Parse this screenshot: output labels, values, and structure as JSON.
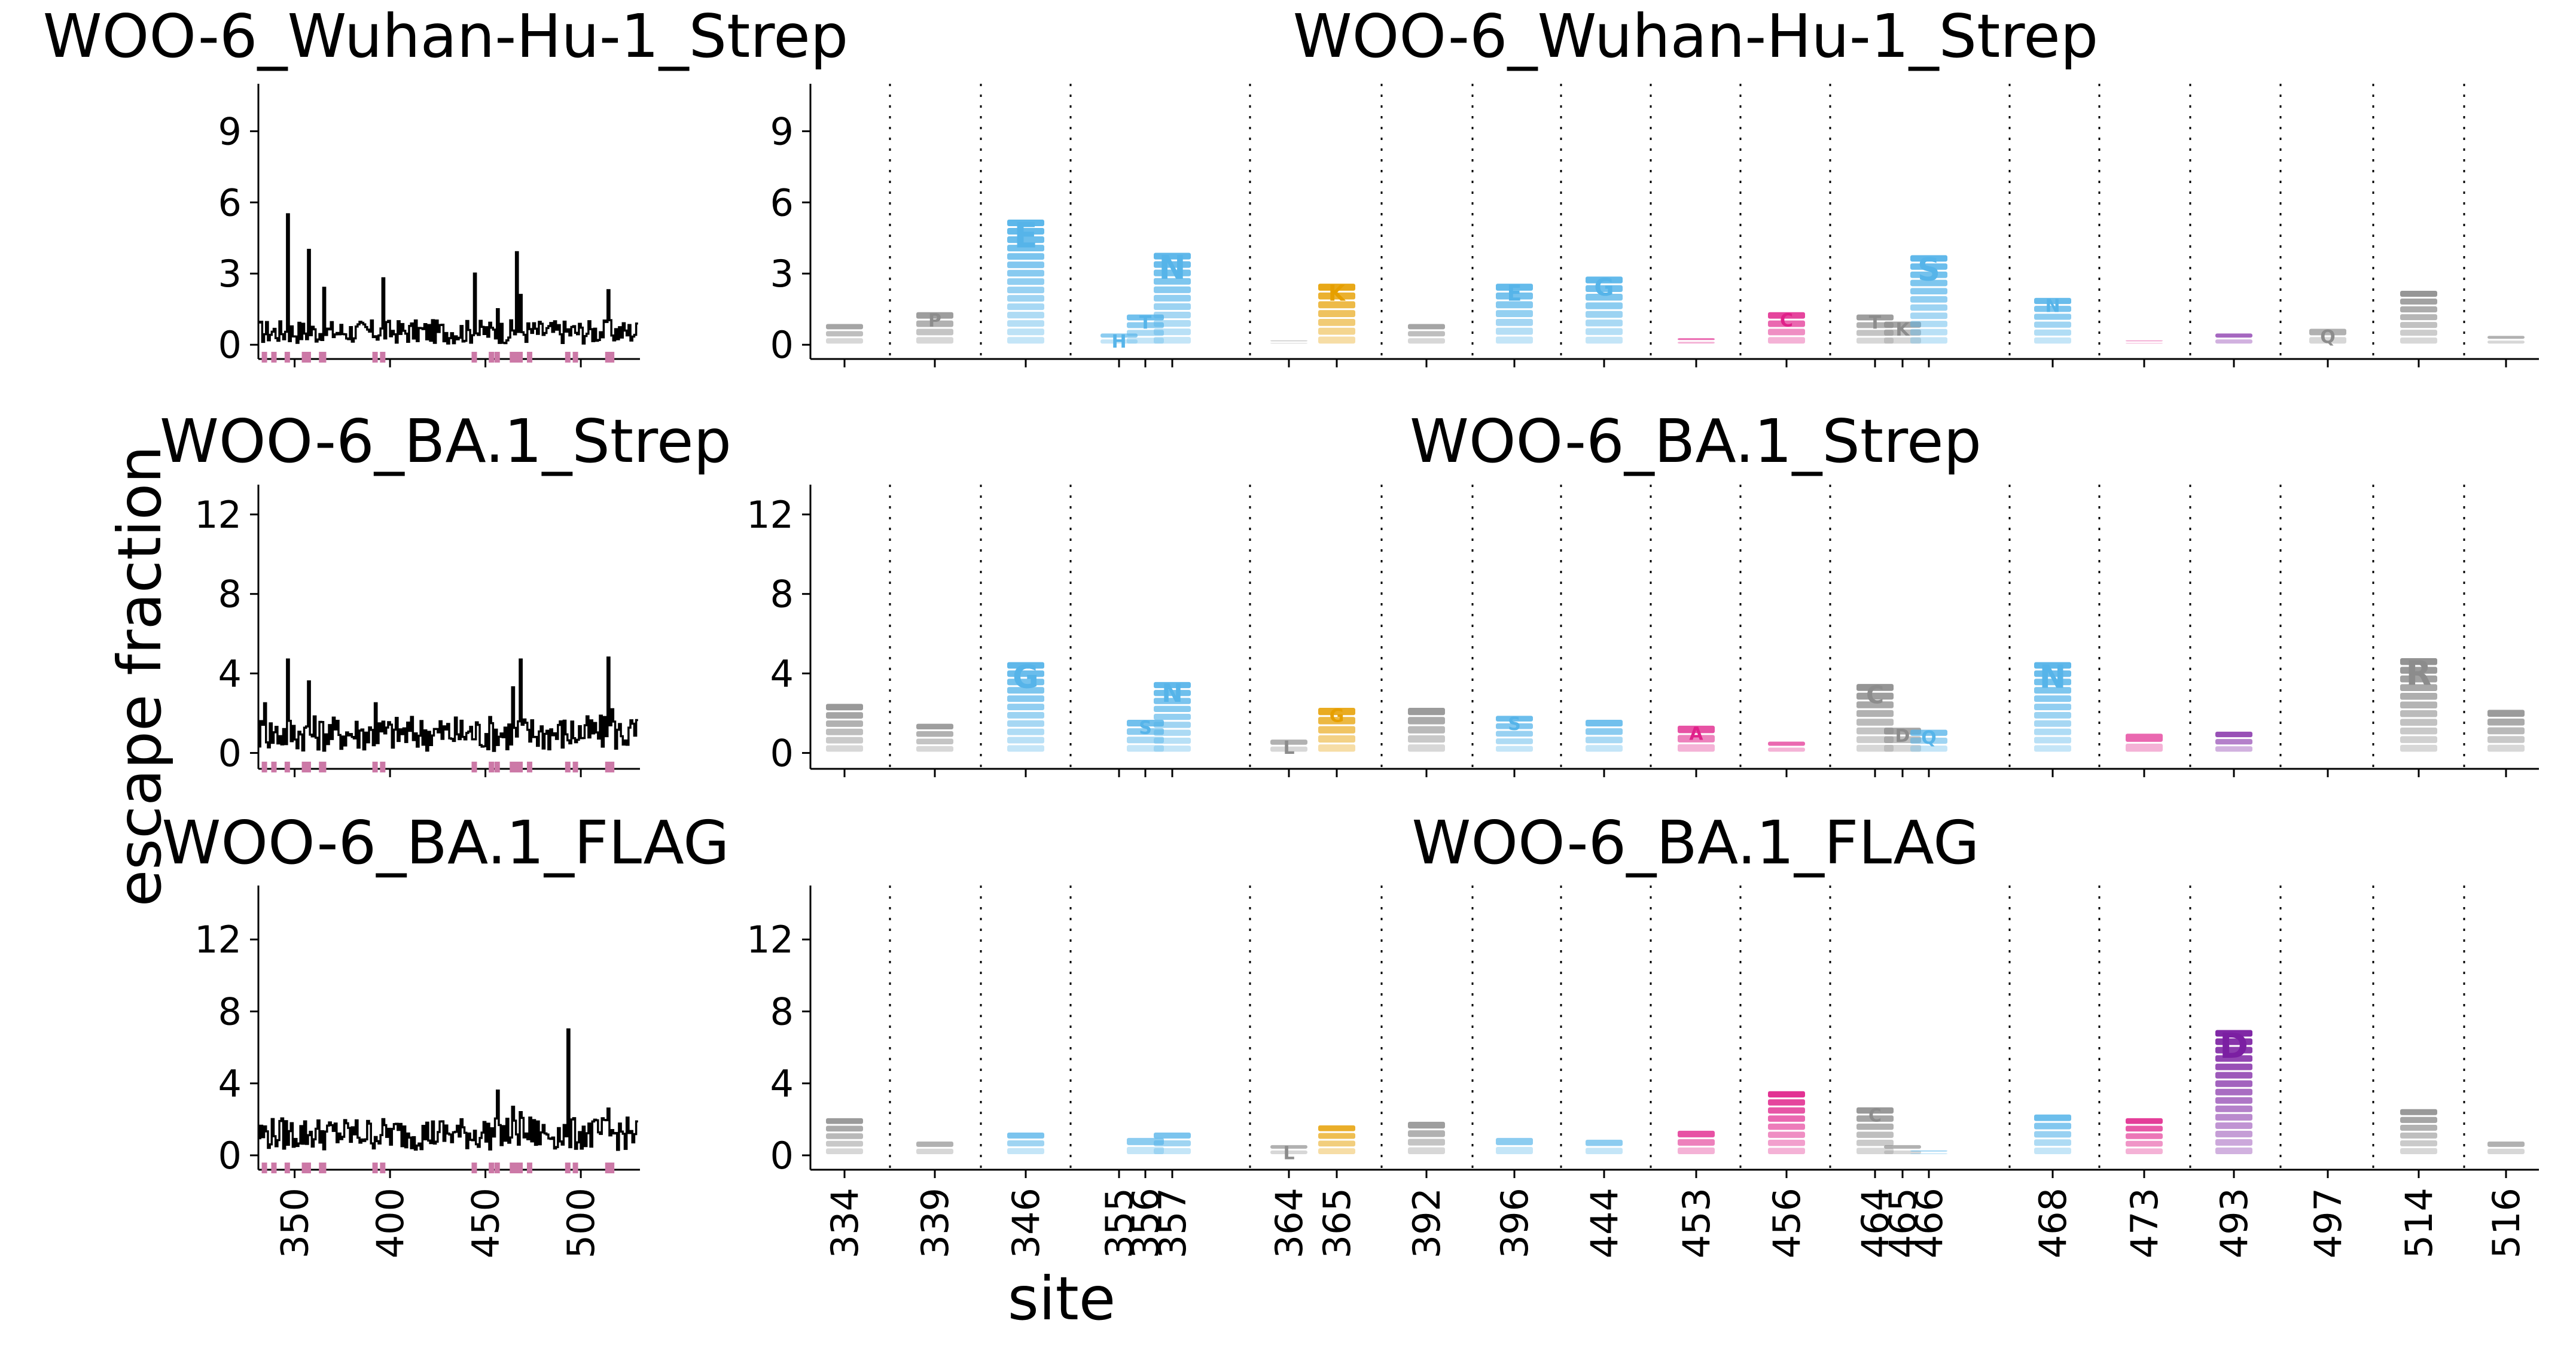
{
  "figure": {
    "ylabel": "escape fraction",
    "xlabel": "site"
  },
  "colors": {
    "line": "#000000",
    "site_marker": "#cc79a7",
    "gray": "#8c8c8c",
    "cyan": "#56b4e9",
    "orange": "#e69f00",
    "magenta": "#e0218a",
    "purple": "#7b1fa2"
  },
  "chart_data": [
    {
      "type": "line",
      "title": "WOO-6_Wuhan-Hu-1_Strep",
      "xlim": [
        331,
        531
      ],
      "ylim": [
        -0.6,
        11
      ],
      "xticks": [
        350,
        400,
        450,
        500
      ],
      "yticks": [
        0,
        3,
        6,
        9
      ],
      "marked_sites": [
        334,
        339,
        346,
        355,
        356,
        357,
        364,
        365,
        392,
        396,
        444,
        453,
        456,
        464,
        465,
        466,
        468,
        473,
        493,
        497,
        514,
        516
      ],
      "baseline": 0.55,
      "noise": 0.25,
      "peaks": [
        [
          346,
          5.5
        ],
        [
          357,
          4.0
        ],
        [
          365,
          2.4
        ],
        [
          396,
          2.8
        ],
        [
          444,
          3.0
        ],
        [
          456,
          1.5
        ],
        [
          466,
          3.9
        ],
        [
          468,
          2.1
        ],
        [
          514,
          2.3
        ],
        [
          364,
          0.2
        ]
      ]
    },
    {
      "type": "line",
      "title": "WOO-6_BA.1_Strep",
      "xlim": [
        331,
        531
      ],
      "ylim": [
        -0.8,
        13.5
      ],
      "xticks": [
        350,
        400,
        450,
        500
      ],
      "yticks": [
        0,
        4,
        8,
        12
      ],
      "marked_sites": [
        334,
        339,
        346,
        355,
        356,
        357,
        364,
        365,
        392,
        396,
        444,
        453,
        456,
        464,
        465,
        466,
        468,
        473,
        493,
        497,
        514,
        516
      ],
      "baseline": 1.0,
      "noise": 0.45,
      "peaks": [
        [
          346,
          4.7
        ],
        [
          357,
          3.6
        ],
        [
          334,
          2.5
        ],
        [
          392,
          2.5
        ],
        [
          464,
          3.3
        ],
        [
          468,
          4.7
        ],
        [
          514,
          4.8
        ],
        [
          516,
          2.2
        ],
        [
          453,
          1.5
        ]
      ]
    },
    {
      "type": "line",
      "title": "WOO-6_BA.1_FLAG",
      "xlim": [
        331,
        531
      ],
      "ylim": [
        -0.8,
        15
      ],
      "xticks": [
        350,
        400,
        450,
        500
      ],
      "yticks": [
        0,
        4,
        8,
        12
      ],
      "marked_sites": [
        334,
        339,
        346,
        355,
        356,
        357,
        364,
        365,
        392,
        396,
        444,
        453,
        456,
        464,
        465,
        466,
        468,
        473,
        493,
        497,
        514,
        516
      ],
      "baseline": 1.2,
      "noise": 0.45,
      "peaks": [
        [
          493,
          7.0
        ],
        [
          456,
          3.6
        ],
        [
          464,
          2.7
        ],
        [
          468,
          2.4
        ],
        [
          473,
          2.1
        ],
        [
          514,
          2.6
        ]
      ]
    },
    {
      "type": "bar",
      "title": "WOO-6_Wuhan-Hu-1_Strep",
      "categories": [
        "334",
        "339",
        "346",
        "355",
        "356",
        "357",
        "364",
        "365",
        "392",
        "396",
        "444",
        "453",
        "456",
        "464",
        "465",
        "466",
        "468",
        "473",
        "493",
        "497",
        "514",
        "516"
      ],
      "values": [
        0.9,
        1.4,
        5.3,
        0.5,
        1.3,
        3.9,
        0.2,
        2.6,
        0.9,
        2.6,
        2.9,
        0.3,
        1.4,
        1.3,
        1.0,
        3.8,
        2.0,
        0.2,
        0.5,
        0.7,
        2.3,
        0.4
      ],
      "colors": [
        "gray",
        "gray",
        "cyan",
        "cyan",
        "cyan",
        "cyan",
        "gray",
        "orange",
        "gray",
        "cyan",
        "cyan",
        "magenta",
        "magenta",
        "gray",
        "gray",
        "cyan",
        "cyan",
        "magenta",
        "purple",
        "gray",
        "gray",
        "gray"
      ],
      "top_letters": [
        "",
        "P",
        "E",
        "H",
        "T",
        "N",
        "",
        "K",
        "",
        "E",
        "G",
        "",
        "C",
        "T",
        "K",
        "S",
        "N",
        "",
        "",
        "Q",
        "",
        ""
      ],
      "ylim": [
        -0.6,
        11
      ],
      "yticks": [
        0,
        3,
        6,
        9
      ]
    },
    {
      "type": "bar",
      "title": "WOO-6_BA.1_Strep",
      "categories": [
        "334",
        "339",
        "346",
        "355",
        "356",
        "357",
        "364",
        "365",
        "392",
        "396",
        "444",
        "453",
        "456",
        "464",
        "465",
        "466",
        "468",
        "473",
        "493",
        "497",
        "514",
        "516"
      ],
      "values": [
        2.5,
        1.5,
        4.6,
        0.0,
        1.7,
        3.6,
        0.7,
        2.3,
        2.3,
        1.9,
        1.7,
        1.4,
        0.6,
        3.5,
        1.3,
        1.2,
        4.6,
        1.0,
        1.1,
        0.0,
        4.8,
        2.2
      ],
      "colors": [
        "gray",
        "gray",
        "cyan",
        "cyan",
        "cyan",
        "cyan",
        "gray",
        "orange",
        "gray",
        "cyan",
        "cyan",
        "magenta",
        "magenta",
        "gray",
        "gray",
        "cyan",
        "cyan",
        "magenta",
        "purple",
        "gray",
        "gray",
        "gray"
      ],
      "top_letters": [
        "",
        "",
        "G",
        "",
        "S",
        "N",
        "L",
        "G",
        "",
        "S",
        "",
        "A",
        "",
        "C",
        "D",
        "Q",
        "N",
        "",
        "",
        "",
        "R",
        ""
      ],
      "ylim": [
        -0.8,
        13.5
      ],
      "yticks": [
        0,
        4,
        8,
        12
      ]
    },
    {
      "type": "bar",
      "title": "WOO-6_BA.1_FLAG",
      "categories": [
        "334",
        "339",
        "346",
        "355",
        "356",
        "357",
        "364",
        "365",
        "392",
        "396",
        "444",
        "453",
        "456",
        "464",
        "465",
        "466",
        "468",
        "473",
        "493",
        "497",
        "514",
        "516"
      ],
      "values": [
        2.1,
        0.8,
        1.3,
        0.0,
        1.0,
        1.3,
        0.6,
        1.7,
        1.9,
        1.0,
        0.9,
        1.4,
        3.6,
        2.7,
        0.6,
        0.3,
        2.3,
        2.1,
        7.0,
        0.0,
        2.6,
        0.8
      ],
      "colors": [
        "gray",
        "gray",
        "cyan",
        "cyan",
        "cyan",
        "cyan",
        "gray",
        "orange",
        "gray",
        "cyan",
        "cyan",
        "magenta",
        "magenta",
        "gray",
        "gray",
        "cyan",
        "cyan",
        "magenta",
        "purple",
        "gray",
        "gray",
        "gray"
      ],
      "top_letters": [
        "",
        "",
        "",
        "",
        "",
        "",
        "L",
        "",
        "",
        "",
        "",
        "",
        "",
        "C",
        "",
        "",
        "",
        "",
        "D",
        "",
        "",
        ""
      ],
      "ylim": [
        -0.8,
        15
      ],
      "yticks": [
        0,
        4,
        8,
        12
      ]
    }
  ]
}
